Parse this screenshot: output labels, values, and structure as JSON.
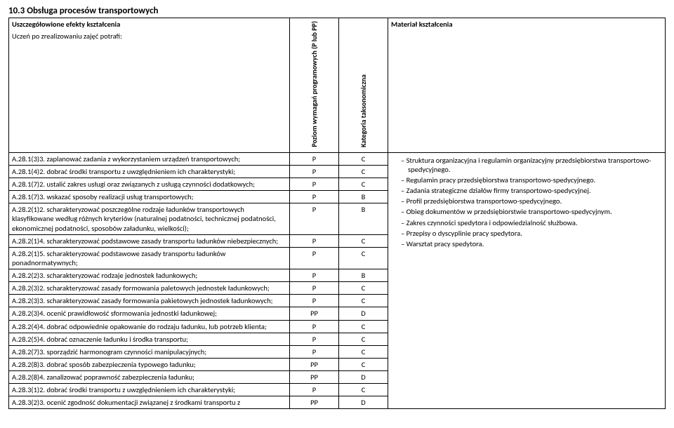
{
  "section_number": "10.3",
  "section_title": "Obsługa procesów transportowych",
  "header": {
    "effects_title": "Uszczegółowione efekty kształcenia",
    "effects_sub": "Uczeń po zrealizowaniu zajęć potrafi:",
    "level_label": "Poziom wymagań programowych (P lub PP)",
    "category_label": "Kategoria taksonomiczna",
    "material_title": "Materiał kształcenia"
  },
  "rows": [
    {
      "text": "A.28.1(3)3. zaplanować  zadania z wykorzystaniem urządzeń transportowych;",
      "level": "P",
      "cat": "C"
    },
    {
      "text": "A.28.1(4)2. dobrać środki transportu z uwzględnieniem ich charakterystyki;",
      "level": "P",
      "cat": "C"
    },
    {
      "text": "A.28.1(7)2. ustalić zakres usługi oraz związanych z usługą czynności dodatkowych;",
      "level": "P",
      "cat": "C"
    },
    {
      "text": "A.28.1(7)3. wskazać sposoby realizacji usług transportowych;",
      "level": "P",
      "cat": "B"
    },
    {
      "text": "A.28.2(1)2. scharakteryzować poszczególne rodzaje ładunków transportowych klasyfikowane według różnych kryteriów (naturalnej podatności, technicznej podatności, ekonomicznej podatności, sposobów załadunku, wielkości);",
      "level": "P",
      "cat": "B"
    },
    {
      "text": "A.28.2(1)4. scharakteryzować podstawowe zasady transportu ładunków niebezpiecznych;",
      "level": "P",
      "cat": "C"
    },
    {
      "text": "A.28.2(1)5. scharakteryzować podstawowe zasady transportu ładunków ponadnormatywnych;",
      "level": "P",
      "cat": "C"
    },
    {
      "text": "A.28.2(2)3. scharakteryzować rodzaje jednostek ładunkowych;",
      "level": "P",
      "cat": "B"
    },
    {
      "text": "A.28.2(3)2. scharakteryzować zasady formowania paletowych jednostek ładunkowych;",
      "level": "P",
      "cat": "C"
    },
    {
      "text": "A.28.2(3)3. scharakteryzować zasady formowania pakietowych jednostek ładunkowych;",
      "level": "P",
      "cat": "C"
    },
    {
      "text": "A.28.2(3)4. ocenić prawidłowość sformowania jednostki ładunkowej;",
      "level": "PP",
      "cat": "D"
    },
    {
      "text": "A.28.2(4)4. dobrać odpowiednie opakowanie do rodzaju ładunku, lub potrzeb klienta;",
      "level": "P",
      "cat": "C"
    },
    {
      "text": "A.28.2(5)4. dobrać oznaczenie ładunku i środka transportu;",
      "level": "P",
      "cat": "C"
    },
    {
      "text": "A.28.2(7)3. sporządzić harmonogram czynności manipulacyjnych;",
      "level": "P",
      "cat": "C"
    },
    {
      "text": "A.28.2(8)3. dobrać sposób zabezpieczenia typowego ładunku;",
      "level": "PP",
      "cat": "C"
    },
    {
      "text": "A.28.2(8)4. zanalizować poprawność zabezpieczenia ładunku;",
      "level": "PP",
      "cat": "D"
    },
    {
      "text": "A.28.3(1)2. dobrać środki transportu z uwzględnieniem ich charakterystyki;",
      "level": "P",
      "cat": "C"
    },
    {
      "text": "A.28.3(2)3. ocenić zgodność dokumentacji związanej z środkami transportu z",
      "level": "PP",
      "cat": "D"
    }
  ],
  "materials": [
    "Struktura organizacyjna i regulamin organizacyjny przedsiębiorstwa transportowo-spedycyjnego.",
    "Regulamin pracy przedsiębiorstwa transportowo-spedycyjnego.",
    "Zadania strategiczne działów firmy transportowo-spedycyjnej.",
    "Profil przedsiębiorstwa transportowo-spedycyjnego.",
    "Obieg dokumentów w przedsiębiorstwie transportowo-spedycyjnym.",
    "Zakres czynności spedytora i odpowiedzialność służbowa.",
    "Przepisy o dyscyplinie pracy spedytora.",
    "Warsztat pracy spedytora."
  ]
}
